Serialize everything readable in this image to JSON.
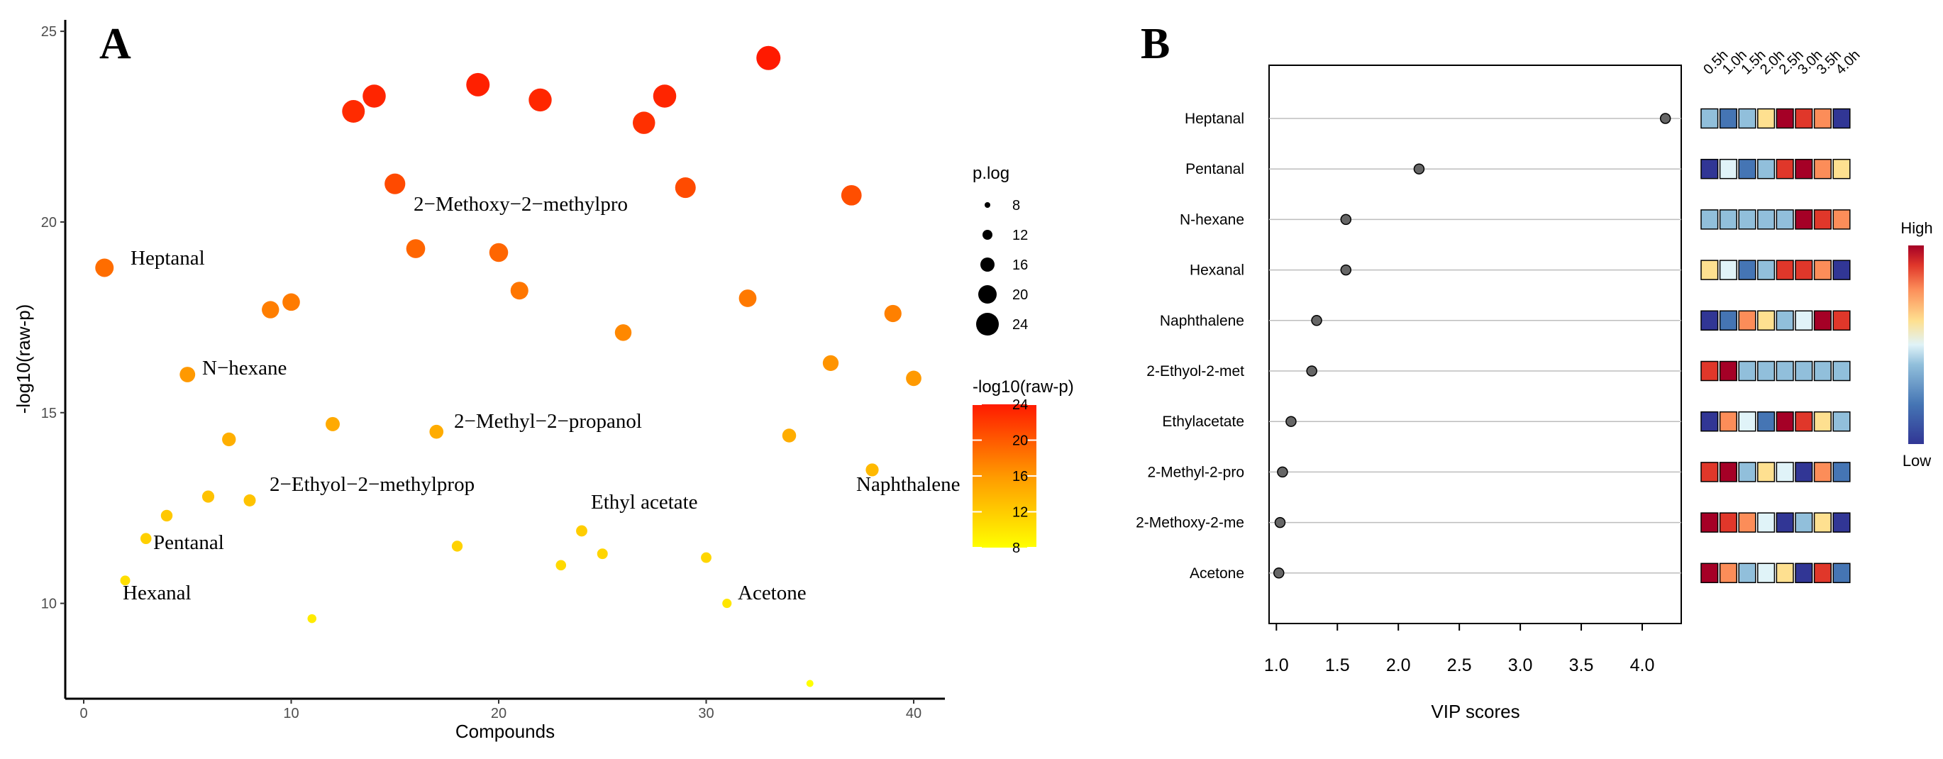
{
  "panel_a_letter": "A",
  "panel_b_letter": "B",
  "chart_data": [
    {
      "type": "scatter",
      "panel": "A",
      "xlabel": "Compounds",
      "ylabel": "-log10(raw-p)",
      "xlim": [
        -1,
        42
      ],
      "ylim": [
        7.5,
        25.3
      ],
      "x_ticks": [
        0,
        10,
        20,
        30,
        40
      ],
      "y_ticks": [
        10,
        15,
        20,
        25
      ],
      "grid": false,
      "points": [
        {
          "x": 1,
          "y": 18.8
        },
        {
          "x": 2,
          "y": 10.6
        },
        {
          "x": 3,
          "y": 11.7
        },
        {
          "x": 4,
          "y": 12.3
        },
        {
          "x": 5,
          "y": 16.0
        },
        {
          "x": 6,
          "y": 12.8
        },
        {
          "x": 7,
          "y": 14.3
        },
        {
          "x": 8,
          "y": 12.7
        },
        {
          "x": 9,
          "y": 17.7
        },
        {
          "x": 10,
          "y": 17.9
        },
        {
          "x": 11,
          "y": 9.6
        },
        {
          "x": 12,
          "y": 14.7
        },
        {
          "x": 13,
          "y": 22.9
        },
        {
          "x": 14,
          "y": 23.3
        },
        {
          "x": 15,
          "y": 21.0
        },
        {
          "x": 16,
          "y": 19.3
        },
        {
          "x": 17,
          "y": 14.5
        },
        {
          "x": 18,
          "y": 11.5
        },
        {
          "x": 19,
          "y": 23.6
        },
        {
          "x": 20,
          "y": 19.2
        },
        {
          "x": 21,
          "y": 18.2
        },
        {
          "x": 22,
          "y": 23.2
        },
        {
          "x": 23,
          "y": 11.0
        },
        {
          "x": 24,
          "y": 11.9
        },
        {
          "x": 25,
          "y": 11.3
        },
        {
          "x": 26,
          "y": 17.1
        },
        {
          "x": 27,
          "y": 22.6
        },
        {
          "x": 28,
          "y": 23.3
        },
        {
          "x": 29,
          "y": 20.9
        },
        {
          "x": 30,
          "y": 11.2
        },
        {
          "x": 31,
          "y": 10.0
        },
        {
          "x": 32,
          "y": 18.0
        },
        {
          "x": 33,
          "y": 24.3
        },
        {
          "x": 34,
          "y": 14.4
        },
        {
          "x": 35,
          "y": 7.9
        },
        {
          "x": 36,
          "y": 16.3
        },
        {
          "x": 37,
          "y": 20.7
        },
        {
          "x": 38,
          "y": 13.5
        },
        {
          "x": 39,
          "y": 17.6
        },
        {
          "x": 40,
          "y": 15.9
        }
      ],
      "annotations": [
        {
          "text": "Heptanal",
          "x": 1,
          "y": 18.8
        },
        {
          "text": "N−hexane",
          "x": 5,
          "y": 16.0
        },
        {
          "text": "2−Methoxy−2−methylpro",
          "x": 16,
          "y": 19.3
        },
        {
          "text": "2−Methyl−2−propanol",
          "x": 17,
          "y": 14.5
        },
        {
          "text": "2−Ethyol−2−methylprop",
          "x": 8,
          "y": 12.7
        },
        {
          "text": "Ethyl acetate",
          "x": 24,
          "y": 11.9
        },
        {
          "text": "Pentanal",
          "x": 3,
          "y": 11.7
        },
        {
          "text": "Hexanal",
          "x": 2,
          "y": 10.6
        },
        {
          "text": "Acetone",
          "x": 31,
          "y": 10.0
        },
        {
          "text": "Naphthalene",
          "x": 38,
          "y": 13.5
        }
      ],
      "legend_size": {
        "title": "p.log",
        "values": [
          8,
          12,
          16,
          20,
          24
        ]
      },
      "legend_color": {
        "title": "-log10(raw-p)",
        "ticks": [
          24,
          20,
          16,
          12,
          8
        ],
        "low_color": "#ffff00",
        "mid_color": "#ff9900",
        "high_color": "#ff1a00"
      }
    },
    {
      "type": "dot",
      "panel": "B",
      "xlabel": "VIP scores",
      "xlim": [
        0.94,
        4.32
      ],
      "x_ticks": [
        1.0,
        1.5,
        2.0,
        2.5,
        3.0,
        3.5,
        4.0
      ],
      "x_tick_labels": [
        "1.0",
        "1.5",
        "2.0",
        "2.5",
        "3.0",
        "3.5",
        "4.0"
      ],
      "categories": [
        "Heptanal",
        "Pentanal",
        "N-hexane",
        "Hexanal",
        "Naphthalene",
        "2-Ethyol-2-met",
        "Ethylacetate",
        "2-Methyl-2-pro",
        "2-Methoxy-2-me",
        "Acetone"
      ],
      "values": [
        4.19,
        2.17,
        1.57,
        1.57,
        1.33,
        1.29,
        1.12,
        1.05,
        1.03,
        1.02
      ],
      "grid": "horizontal lines"
    },
    {
      "type": "heatmap",
      "panel": "B",
      "columns": [
        "0.5h",
        "1.0h",
        "1.5h",
        "2.0h",
        "2.5h",
        "3.0h",
        "3.5h",
        "4.0h"
      ],
      "rows": [
        "Heptanal",
        "Pentanal",
        "N-hexane",
        "Hexanal",
        "Naphthalene",
        "2-Ethyol-2-met",
        "Ethylacetate",
        "2-Methyl-2-pro",
        "2-Methoxy-2-me",
        "Acetone"
      ],
      "levels": [
        [
          2,
          1,
          2,
          4,
          7,
          6,
          5,
          0
        ],
        [
          0,
          3,
          1,
          2,
          6,
          7,
          5,
          4
        ],
        [
          2,
          2,
          2,
          2,
          2,
          7,
          6,
          5
        ],
        [
          4,
          3,
          1,
          2,
          6,
          6,
          5,
          0
        ],
        [
          0,
          1,
          5,
          4,
          2,
          3,
          7,
          6
        ],
        [
          6,
          7,
          2,
          2,
          2,
          2,
          2,
          2
        ],
        [
          0,
          5,
          3,
          1,
          7,
          6,
          4,
          2
        ],
        [
          6,
          7,
          2,
          4,
          3,
          0,
          5,
          1
        ],
        [
          7,
          6,
          5,
          3,
          0,
          2,
          4,
          0
        ],
        [
          7,
          5,
          2,
          3,
          4,
          0,
          6,
          1
        ]
      ],
      "palette": [
        "#313695",
        "#4575b4",
        "#91bfdb",
        "#e0f3f8",
        "#fee090",
        "#fc8d59",
        "#e0372a",
        "#a50026"
      ],
      "legend_high": "High",
      "legend_low": "Low"
    }
  ]
}
